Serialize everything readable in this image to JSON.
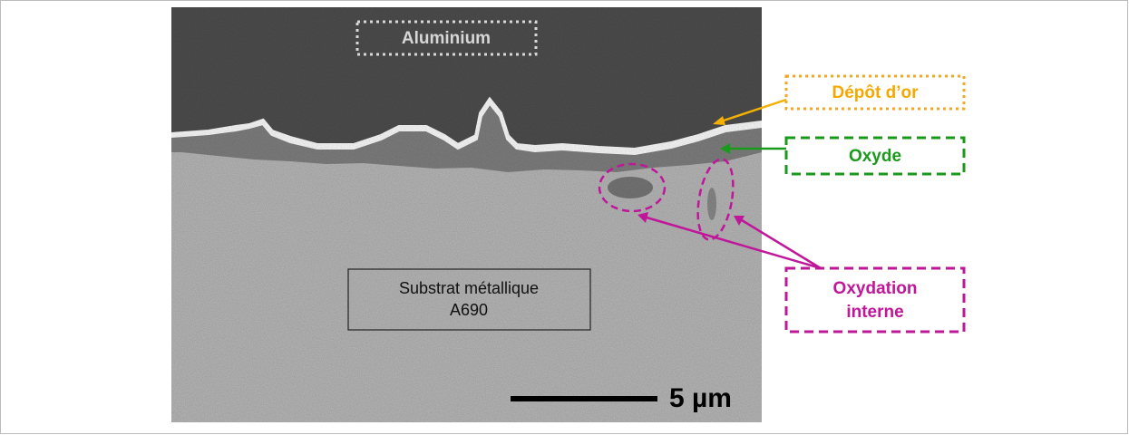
{
  "labels": {
    "aluminium": "Aluminium",
    "gold": "Dépôt d’or",
    "oxide": "Oxyde",
    "internal_oxidation": [
      "Oxydation",
      "interne"
    ],
    "substrate": [
      "Substrat métallique",
      "A690"
    ],
    "scale": "5 µm"
  }
}
